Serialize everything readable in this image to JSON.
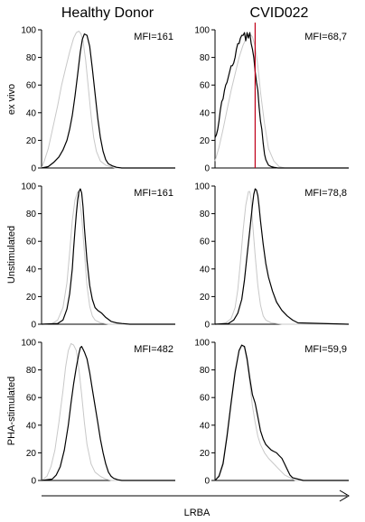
{
  "figure": {
    "columns": [
      "Healthy Donor",
      "CVID022"
    ],
    "rows": [
      "ex vivo",
      "Unstimulated",
      "PHA-stimulated"
    ],
    "xlabel": "LRBA"
  },
  "colors": {
    "sample": "#000000",
    "control": "#c8c8c8",
    "marker": "#c0001a"
  },
  "chart_data": [
    {
      "type": "line",
      "row": "ex vivo",
      "column": "Healthy Donor",
      "annotation": "MFI=161",
      "ylim": [
        0,
        100
      ],
      "xlim": [
        0,
        100
      ],
      "yticks": [
        0,
        20,
        40,
        60,
        80,
        100
      ],
      "series": [
        {
          "role": "control",
          "x": [
            0,
            2,
            5,
            8,
            12,
            15,
            18,
            21,
            24,
            26,
            28,
            29.5,
            31,
            33,
            35,
            37,
            39,
            41,
            44,
            48,
            55,
            100
          ],
          "y": [
            0,
            5,
            14,
            27,
            45,
            60,
            72,
            84,
            94,
            98,
            99,
            97,
            92,
            78,
            58,
            38,
            22,
            12,
            5,
            2,
            0,
            0
          ]
        },
        {
          "role": "sample",
          "x": [
            0,
            5,
            9,
            13,
            16,
            19,
            21,
            23,
            25,
            27,
            29,
            30.5,
            32,
            34,
            36,
            38,
            40,
            42,
            44,
            46,
            48,
            50,
            53,
            56,
            60,
            100
          ],
          "y": [
            0,
            1,
            4,
            8,
            13,
            20,
            28,
            38,
            52,
            68,
            84,
            93,
            97,
            96,
            88,
            72,
            54,
            36,
            22,
            12,
            6,
            3,
            1.5,
            0.5,
            0,
            0
          ]
        }
      ]
    },
    {
      "type": "line",
      "row": "ex vivo",
      "column": "CVID022",
      "annotation": "MFI=68,7",
      "ylim": [
        0,
        100
      ],
      "xlim": [
        0,
        100
      ],
      "yticks": [
        0,
        20,
        40,
        60,
        80,
        100
      ],
      "marker_x": 30,
      "series": [
        {
          "role": "control",
          "x": [
            0,
            3,
            6,
            9,
            12,
            15,
            18,
            21,
            24,
            26,
            28,
            30,
            32,
            34,
            37,
            40,
            44,
            48,
            52,
            100
          ],
          "y": [
            5,
            15,
            28,
            42,
            56,
            68,
            80,
            89,
            95,
            97,
            95,
            88,
            74,
            55,
            32,
            14,
            5,
            1,
            0,
            0
          ]
        },
        {
          "role": "sample",
          "x": [
            0,
            1,
            2,
            3,
            4,
            5,
            6,
            7,
            8,
            9,
            10,
            11,
            12,
            13,
            14,
            15,
            16,
            17,
            18,
            19,
            20,
            21,
            22,
            23,
            24,
            25,
            26,
            27,
            28,
            29,
            30,
            31,
            32,
            33,
            34,
            35,
            36,
            37,
            38,
            39,
            40,
            42,
            44,
            47,
            50,
            55,
            100
          ],
          "y": [
            22,
            24,
            28,
            34,
            42,
            48,
            50,
            56,
            60,
            62,
            66,
            70,
            74,
            74,
            76,
            80,
            86,
            90,
            90,
            94,
            96,
            96,
            98,
            92,
            98,
            94,
            98,
            90,
            86,
            80,
            70,
            62,
            56,
            44,
            34,
            28,
            18,
            10,
            6,
            4,
            2,
            1,
            0.5,
            0,
            0,
            0,
            0
          ]
        }
      ]
    },
    {
      "type": "line",
      "row": "Unstimulated",
      "column": "Healthy Donor",
      "annotation": "MFI=161",
      "ylim": [
        0,
        100
      ],
      "xlim": [
        0,
        100
      ],
      "yticks": [
        0,
        20,
        40,
        60,
        80,
        100
      ],
      "series": [
        {
          "role": "control",
          "x": [
            0,
            8,
            12,
            16,
            19,
            21,
            23,
            25,
            27,
            28,
            30,
            32,
            34,
            36,
            38,
            40,
            44,
            50,
            100
          ],
          "y": [
            0,
            0.5,
            3,
            12,
            30,
            52,
            75,
            90,
            96,
            94,
            78,
            52,
            28,
            13,
            6,
            3,
            1,
            0,
            0
          ]
        },
        {
          "role": "sample",
          "x": [
            0,
            12,
            16,
            19,
            21,
            23,
            24,
            25,
            26,
            27,
            28,
            29,
            30,
            31,
            32,
            34,
            36,
            38,
            40,
            42,
            45,
            48,
            52,
            56,
            60,
            66,
            100
          ],
          "y": [
            0,
            0.5,
            3,
            11,
            22,
            40,
            55,
            68,
            80,
            90,
            96,
            98,
            95,
            85,
            70,
            46,
            28,
            18,
            12,
            10,
            8,
            5,
            2,
            1,
            0.5,
            0,
            0
          ]
        }
      ]
    },
    {
      "type": "line",
      "row": "Unstimulated",
      "column": "CVID022",
      "annotation": "MFI=78,8",
      "ylim": [
        0,
        100
      ],
      "xlim": [
        0,
        100
      ],
      "yticks": [
        0,
        20,
        40,
        60,
        80,
        100
      ],
      "series": [
        {
          "role": "control",
          "x": [
            0,
            8,
            12,
            15,
            17,
            19,
            21,
            23,
            25,
            26,
            27,
            28,
            30,
            32,
            34,
            36,
            38,
            42,
            50,
            100
          ],
          "y": [
            0,
            1,
            4,
            12,
            25,
            45,
            68,
            86,
            96,
            96,
            90,
            75,
            50,
            28,
            14,
            6,
            3,
            1,
            0,
            0
          ]
        },
        {
          "role": "sample",
          "x": [
            0,
            10,
            14,
            17,
            20,
            22,
            24,
            26,
            28,
            29,
            30,
            31,
            32,
            33,
            34,
            36,
            38,
            40,
            43,
            46,
            50,
            54,
            58,
            62,
            100
          ],
          "y": [
            0,
            0.5,
            3,
            8,
            18,
            32,
            50,
            68,
            86,
            94,
            98,
            97,
            93,
            85,
            75,
            58,
            44,
            34,
            24,
            16,
            10,
            6,
            3,
            1,
            0
          ]
        }
      ]
    },
    {
      "type": "line",
      "row": "PHA-stimulated",
      "column": "Healthy Donor",
      "annotation": "MFI=482",
      "ylim": [
        0,
        100
      ],
      "xlim": [
        0,
        100
      ],
      "yticks": [
        0,
        20,
        40,
        60,
        80,
        100
      ],
      "series": [
        {
          "role": "control",
          "x": [
            0,
            4,
            7,
            10,
            13,
            16,
            18,
            20,
            22,
            24,
            26,
            28,
            30,
            32,
            34,
            37,
            40,
            44,
            48,
            52,
            100
          ],
          "y": [
            0,
            3,
            10,
            22,
            42,
            65,
            82,
            94,
            99,
            98,
            94,
            80,
            62,
            42,
            26,
            12,
            6,
            3,
            1,
            0,
            0
          ]
        },
        {
          "role": "sample",
          "x": [
            0,
            8,
            11,
            14,
            17,
            20,
            22,
            24,
            26,
            28,
            29,
            30,
            31,
            32,
            34,
            36,
            38,
            40,
            42,
            44,
            46,
            48,
            50,
            52,
            54,
            57,
            60,
            66,
            100
          ],
          "y": [
            0,
            1,
            4,
            10,
            22,
            40,
            56,
            70,
            82,
            92,
            96,
            97,
            95,
            93,
            88,
            78,
            66,
            54,
            42,
            30,
            20,
            12,
            6,
            3,
            1.5,
            0.5,
            0,
            0,
            0
          ]
        }
      ]
    },
    {
      "type": "line",
      "row": "PHA-stimulated",
      "column": "CVID022",
      "annotation": "MFI=59,9",
      "ylim": [
        0,
        100
      ],
      "xlim": [
        0,
        100
      ],
      "yticks": [
        0,
        20,
        40,
        60,
        80,
        100
      ],
      "series": [
        {
          "role": "control",
          "x": [
            0,
            3,
            6,
            9,
            12,
            15,
            18,
            20,
            22,
            24,
            26,
            28,
            30,
            32,
            34,
            37,
            40,
            44,
            48,
            52,
            56,
            60,
            100
          ],
          "y": [
            0,
            4,
            14,
            34,
            58,
            80,
            94,
            98,
            96,
            86,
            70,
            54,
            42,
            32,
            26,
            20,
            16,
            12,
            8,
            4,
            2,
            0,
            0
          ]
        },
        {
          "role": "sample",
          "x": [
            0,
            3,
            6,
            9,
            12,
            15,
            18,
            20,
            22,
            24,
            26,
            28,
            30,
            32,
            34,
            36,
            38,
            40,
            42,
            44,
            46,
            48,
            50,
            52,
            54,
            56,
            58,
            62,
            66,
            100
          ],
          "y": [
            0,
            3,
            12,
            32,
            56,
            78,
            94,
            98,
            97,
            88,
            74,
            62,
            56,
            46,
            36,
            30,
            26,
            24,
            22,
            21,
            20,
            18,
            16,
            12,
            8,
            4,
            2,
            1,
            0,
            0
          ]
        }
      ]
    }
  ]
}
